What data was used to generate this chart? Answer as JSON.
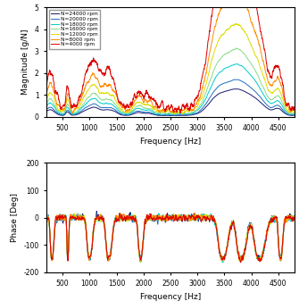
{
  "speeds": [
    24000,
    20000,
    18000,
    16000,
    12000,
    8000,
    4000
  ],
  "colors": [
    "#191970",
    "#1E6FBF",
    "#00CCCC",
    "#88DD88",
    "#DDDD00",
    "#FF8C00",
    "#DD0000"
  ],
  "labels": [
    "N=24000 rpm",
    "N=20000 rpm",
    "N=18000 rpm",
    "N=16000 rpm",
    "N=12000 rpm",
    "N=8000 rpm",
    "N=4000 rpm"
  ],
  "freq_min": 200,
  "freq_max": 4800,
  "mag_ylim": [
    0,
    5
  ],
  "mag_yticks": [
    0,
    1,
    2,
    3,
    4,
    5
  ],
  "phase_ylim": [
    -200,
    200
  ],
  "phase_yticks": [
    -200,
    -100,
    0,
    100,
    200
  ],
  "xticks": [
    500,
    1000,
    1500,
    2000,
    2500,
    3000,
    3500,
    4000,
    4500
  ],
  "xlabel": "Frequency [Hz]",
  "mag_ylabel": "Magnitude [g/N]",
  "phase_ylabel": "Phase [Deg]",
  "seed": 42,
  "speed_scales": [
    0.45,
    0.6,
    0.85,
    1.1,
    1.5,
    2.0,
    2.7
  ]
}
